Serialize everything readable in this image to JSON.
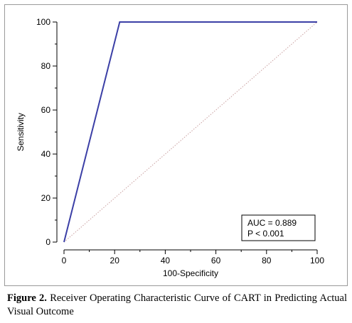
{
  "chart_data": {
    "type": "line",
    "xlabel": "100-Specificity",
    "ylabel": "Sensitivity",
    "xlim": [
      0,
      100
    ],
    "ylim": [
      0,
      100
    ],
    "xticks": [
      0,
      20,
      40,
      60,
      80,
      100
    ],
    "yticks": [
      0,
      20,
      40,
      60,
      80,
      100
    ],
    "series": [
      {
        "x": [
          0,
          22,
          100
        ],
        "y": [
          0,
          100,
          100
        ],
        "color": "#3b3fa6",
        "style": "solid"
      },
      {
        "x": [
          0,
          100
        ],
        "y": [
          0,
          100
        ],
        "color": "#c9a0a0",
        "style": "dotted"
      }
    ],
    "annotations": [
      "AUC = 0.889",
      "P < 0.001"
    ]
  },
  "caption": {
    "label": "Figure 2.",
    "text": " Receiver Operating Characteristic Curve of CART in Predicting Actual Visual Outcome"
  }
}
